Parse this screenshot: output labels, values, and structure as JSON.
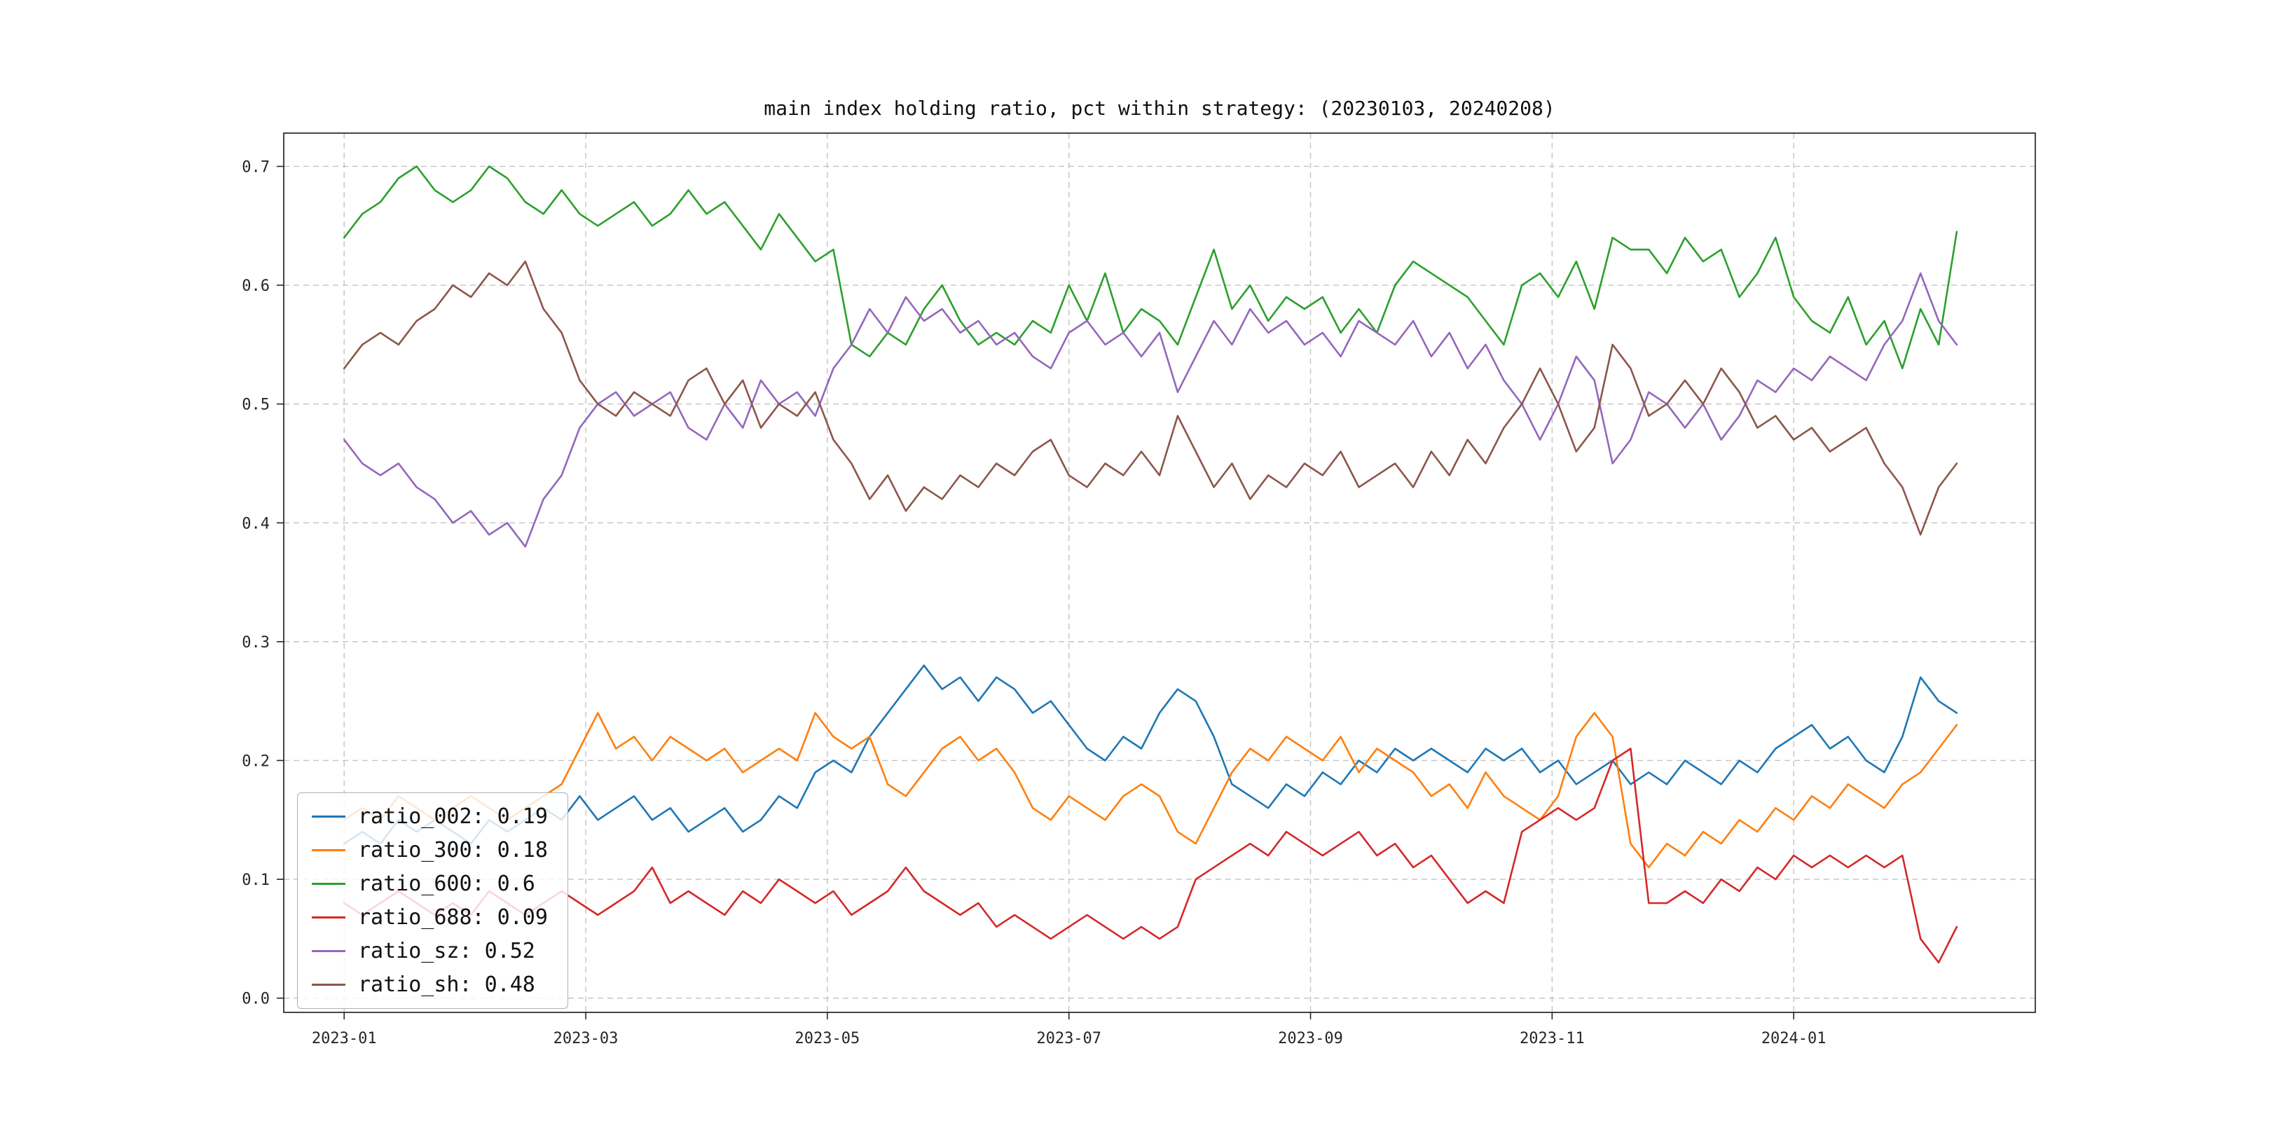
{
  "title": "main index holding ratio, pct within strategy: (20230103, 20240208)",
  "chart_data": {
    "type": "line",
    "title": "main index holding ratio, pct within strategy: (20230103, 20240208)",
    "date_range": [
      "20230103",
      "20240208"
    ],
    "grid": true,
    "grid_style": "dashed",
    "legend_position": "lower left",
    "x_axis": {
      "tick_labels": [
        "2023-01",
        "2023-03",
        "2023-05",
        "2023-07",
        "2023-09",
        "2023-11",
        "2024-01"
      ],
      "tick_positions_months": [
        0,
        2,
        4,
        6,
        8,
        10,
        12
      ],
      "range_months": [
        -0.5,
        14.0
      ]
    },
    "y_axis": {
      "ticks": [
        0.0,
        0.1,
        0.2,
        0.3,
        0.4,
        0.5,
        0.6,
        0.7
      ],
      "range": [
        -0.012,
        0.728
      ]
    },
    "x": {
      "start": 0,
      "step": 0.15,
      "count": 90,
      "unit": "months since 2023-01"
    },
    "series": [
      {
        "name": "ratio_002",
        "label": "ratio_002: 0.19",
        "color": "#1f77b4",
        "values": [
          0.13,
          0.14,
          0.13,
          0.15,
          0.14,
          0.15,
          0.14,
          0.13,
          0.15,
          0.14,
          0.15,
          0.16,
          0.15,
          0.17,
          0.15,
          0.16,
          0.17,
          0.15,
          0.16,
          0.14,
          0.15,
          0.16,
          0.14,
          0.15,
          0.17,
          0.16,
          0.19,
          0.2,
          0.19,
          0.22,
          0.24,
          0.26,
          0.28,
          0.26,
          0.27,
          0.25,
          0.27,
          0.26,
          0.24,
          0.25,
          0.23,
          0.21,
          0.2,
          0.22,
          0.21,
          0.24,
          0.26,
          0.25,
          0.22,
          0.18,
          0.17,
          0.16,
          0.18,
          0.17,
          0.19,
          0.18,
          0.2,
          0.19,
          0.21,
          0.2,
          0.21,
          0.2,
          0.19,
          0.21,
          0.2,
          0.21,
          0.19,
          0.2,
          0.18,
          0.19,
          0.2,
          0.18,
          0.19,
          0.18,
          0.2,
          0.19,
          0.18,
          0.2,
          0.19,
          0.21,
          0.22,
          0.23,
          0.21,
          0.22,
          0.2,
          0.19,
          0.22,
          0.27,
          0.25,
          0.24
        ]
      },
      {
        "name": "ratio_300",
        "label": "ratio_300: 0.18",
        "color": "#ff7f0e",
        "values": [
          0.15,
          0.16,
          0.15,
          0.17,
          0.16,
          0.15,
          0.16,
          0.17,
          0.16,
          0.15,
          0.16,
          0.17,
          0.18,
          0.21,
          0.24,
          0.21,
          0.22,
          0.2,
          0.22,
          0.21,
          0.2,
          0.21,
          0.19,
          0.2,
          0.21,
          0.2,
          0.24,
          0.22,
          0.21,
          0.22,
          0.18,
          0.17,
          0.19,
          0.21,
          0.22,
          0.2,
          0.21,
          0.19,
          0.16,
          0.15,
          0.17,
          0.16,
          0.15,
          0.17,
          0.18,
          0.17,
          0.14,
          0.13,
          0.16,
          0.19,
          0.21,
          0.2,
          0.22,
          0.21,
          0.2,
          0.22,
          0.19,
          0.21,
          0.2,
          0.19,
          0.17,
          0.18,
          0.16,
          0.19,
          0.17,
          0.16,
          0.15,
          0.17,
          0.22,
          0.24,
          0.22,
          0.13,
          0.11,
          0.13,
          0.12,
          0.14,
          0.13,
          0.15,
          0.14,
          0.16,
          0.15,
          0.17,
          0.16,
          0.18,
          0.17,
          0.16,
          0.18,
          0.19,
          0.21,
          0.23
        ]
      },
      {
        "name": "ratio_600",
        "label": "ratio_600: 0.6",
        "color": "#2ca02c",
        "values": [
          0.64,
          0.66,
          0.67,
          0.69,
          0.7,
          0.68,
          0.67,
          0.68,
          0.7,
          0.69,
          0.67,
          0.66,
          0.68,
          0.66,
          0.65,
          0.66,
          0.67,
          0.65,
          0.66,
          0.68,
          0.66,
          0.67,
          0.65,
          0.63,
          0.66,
          0.64,
          0.62,
          0.63,
          0.55,
          0.54,
          0.56,
          0.55,
          0.58,
          0.6,
          0.57,
          0.55,
          0.56,
          0.55,
          0.57,
          0.56,
          0.6,
          0.57,
          0.61,
          0.56,
          0.58,
          0.57,
          0.55,
          0.59,
          0.63,
          0.58,
          0.6,
          0.57,
          0.59,
          0.58,
          0.59,
          0.56,
          0.58,
          0.56,
          0.6,
          0.62,
          0.61,
          0.6,
          0.59,
          0.57,
          0.55,
          0.6,
          0.61,
          0.59,
          0.62,
          0.58,
          0.64,
          0.63,
          0.63,
          0.61,
          0.64,
          0.62,
          0.63,
          0.59,
          0.61,
          0.64,
          0.59,
          0.57,
          0.56,
          0.59,
          0.55,
          0.57,
          0.53,
          0.58,
          0.55,
          0.645
        ]
      },
      {
        "name": "ratio_688",
        "label": "ratio_688: 0.09",
        "color": "#d62728",
        "values": [
          0.08,
          0.07,
          0.08,
          0.09,
          0.08,
          0.07,
          0.08,
          0.07,
          0.09,
          0.08,
          0.07,
          0.08,
          0.09,
          0.08,
          0.07,
          0.08,
          0.09,
          0.11,
          0.08,
          0.09,
          0.08,
          0.07,
          0.09,
          0.08,
          0.1,
          0.09,
          0.08,
          0.09,
          0.07,
          0.08,
          0.09,
          0.11,
          0.09,
          0.08,
          0.07,
          0.08,
          0.06,
          0.07,
          0.06,
          0.05,
          0.06,
          0.07,
          0.06,
          0.05,
          0.06,
          0.05,
          0.06,
          0.1,
          0.11,
          0.12,
          0.13,
          0.12,
          0.14,
          0.13,
          0.12,
          0.13,
          0.14,
          0.12,
          0.13,
          0.11,
          0.12,
          0.1,
          0.08,
          0.09,
          0.08,
          0.14,
          0.15,
          0.16,
          0.15,
          0.16,
          0.2,
          0.21,
          0.08,
          0.08,
          0.09,
          0.08,
          0.1,
          0.09,
          0.11,
          0.1,
          0.12,
          0.11,
          0.12,
          0.11,
          0.12,
          0.11,
          0.12,
          0.05,
          0.03,
          0.06
        ]
      },
      {
        "name": "ratio_sz",
        "label": "ratio_sz: 0.52",
        "color": "#9467bd",
        "values": [
          0.47,
          0.45,
          0.44,
          0.45,
          0.43,
          0.42,
          0.4,
          0.41,
          0.39,
          0.4,
          0.38,
          0.42,
          0.44,
          0.48,
          0.5,
          0.51,
          0.49,
          0.5,
          0.51,
          0.48,
          0.47,
          0.5,
          0.48,
          0.52,
          0.5,
          0.51,
          0.49,
          0.53,
          0.55,
          0.58,
          0.56,
          0.59,
          0.57,
          0.58,
          0.56,
          0.57,
          0.55,
          0.56,
          0.54,
          0.53,
          0.56,
          0.57,
          0.55,
          0.56,
          0.54,
          0.56,
          0.51,
          0.54,
          0.57,
          0.55,
          0.58,
          0.56,
          0.57,
          0.55,
          0.56,
          0.54,
          0.57,
          0.56,
          0.55,
          0.57,
          0.54,
          0.56,
          0.53,
          0.55,
          0.52,
          0.5,
          0.47,
          0.5,
          0.54,
          0.52,
          0.45,
          0.47,
          0.51,
          0.5,
          0.48,
          0.5,
          0.47,
          0.49,
          0.52,
          0.51,
          0.53,
          0.52,
          0.54,
          0.53,
          0.52,
          0.55,
          0.57,
          0.61,
          0.57,
          0.55
        ]
      },
      {
        "name": "ratio_sh",
        "label": "ratio_sh: 0.48",
        "color": "#8c564b",
        "values": [
          0.53,
          0.55,
          0.56,
          0.55,
          0.57,
          0.58,
          0.6,
          0.59,
          0.61,
          0.6,
          0.62,
          0.58,
          0.56,
          0.52,
          0.5,
          0.49,
          0.51,
          0.5,
          0.49,
          0.52,
          0.53,
          0.5,
          0.52,
          0.48,
          0.5,
          0.49,
          0.51,
          0.47,
          0.45,
          0.42,
          0.44,
          0.41,
          0.43,
          0.42,
          0.44,
          0.43,
          0.45,
          0.44,
          0.46,
          0.47,
          0.44,
          0.43,
          0.45,
          0.44,
          0.46,
          0.44,
          0.49,
          0.46,
          0.43,
          0.45,
          0.42,
          0.44,
          0.43,
          0.45,
          0.44,
          0.46,
          0.43,
          0.44,
          0.45,
          0.43,
          0.46,
          0.44,
          0.47,
          0.45,
          0.48,
          0.5,
          0.53,
          0.5,
          0.46,
          0.48,
          0.55,
          0.53,
          0.49,
          0.5,
          0.52,
          0.5,
          0.53,
          0.51,
          0.48,
          0.49,
          0.47,
          0.48,
          0.46,
          0.47,
          0.48,
          0.45,
          0.43,
          0.39,
          0.43,
          0.45
        ]
      }
    ]
  }
}
